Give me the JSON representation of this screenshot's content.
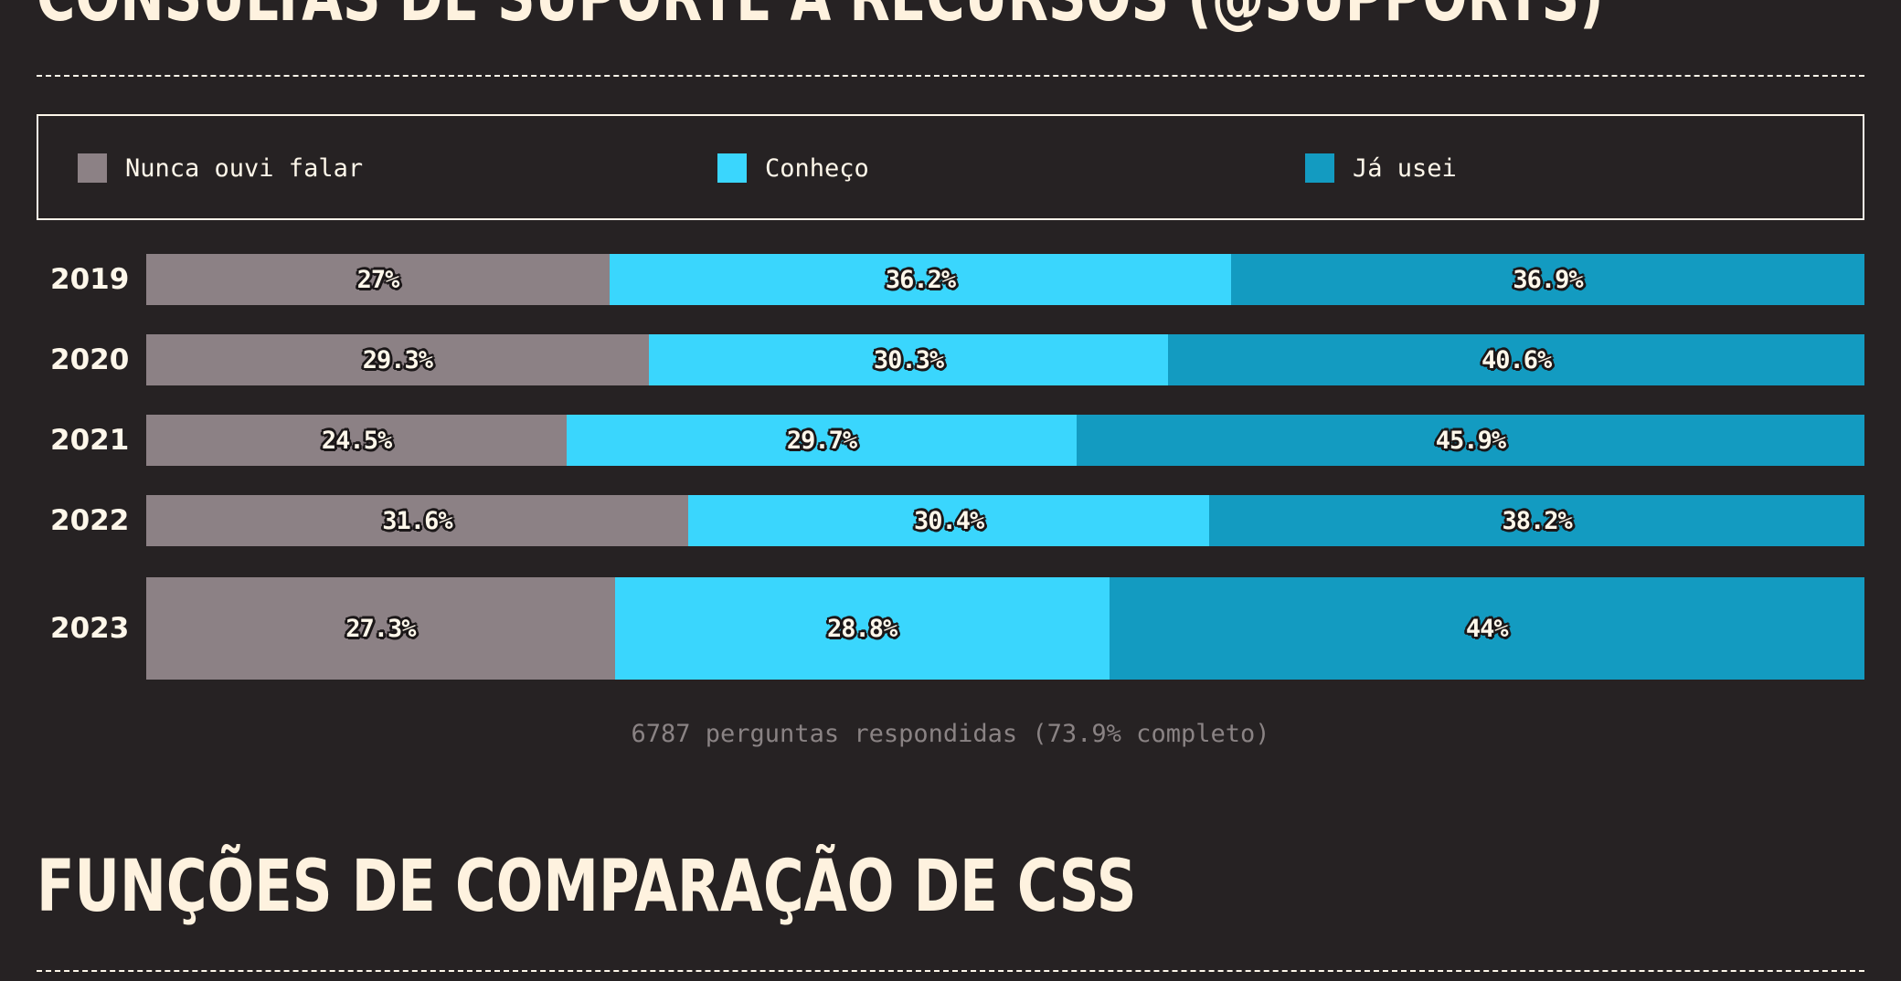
{
  "sections": {
    "top_title": "CONSULTAS DE SUPORTE A RECURSOS (@SUPPORTS)",
    "bottom_title": "FUNÇÕES DE COMPARAÇÃO DE CSS"
  },
  "colors": {
    "background": "#262223",
    "never_heard": "#8c8185",
    "know": "#3ad6fd",
    "used": "#139bc1",
    "text": "#fef7ea",
    "muted": "#8a8384"
  },
  "legend": [
    {
      "label": "Nunca ouvi falar",
      "color": "#8c8185"
    },
    {
      "label": "Conheço",
      "color": "#3ad6fd"
    },
    {
      "label": "Já usei",
      "color": "#139bc1"
    }
  ],
  "chart_data": {
    "type": "bar",
    "orientation": "horizontal",
    "stacked": true,
    "categories": [
      "2019",
      "2020",
      "2021",
      "2022",
      "2023"
    ],
    "series": [
      {
        "name": "Nunca ouvi falar",
        "values": [
          27,
          29.3,
          24.5,
          31.6,
          27.3
        ],
        "labels": [
          "27%",
          "29.3%",
          "24.5%",
          "31.6%",
          "27.3%"
        ]
      },
      {
        "name": "Conheço",
        "values": [
          36.2,
          30.3,
          29.7,
          30.4,
          28.8
        ],
        "labels": [
          "36.2%",
          "30.3%",
          "29.7%",
          "30.4%",
          "28.8%"
        ]
      },
      {
        "name": "Já usei",
        "values": [
          36.9,
          40.6,
          45.9,
          38.2,
          44
        ],
        "labels": [
          "36.9%",
          "40.6%",
          "45.9%",
          "38.2%",
          "44%"
        ]
      }
    ],
    "xlim": [
      0,
      100
    ],
    "unit": "%",
    "legend_position": "top"
  },
  "footnote": "6787 perguntas respondidas (73.9% completo)"
}
